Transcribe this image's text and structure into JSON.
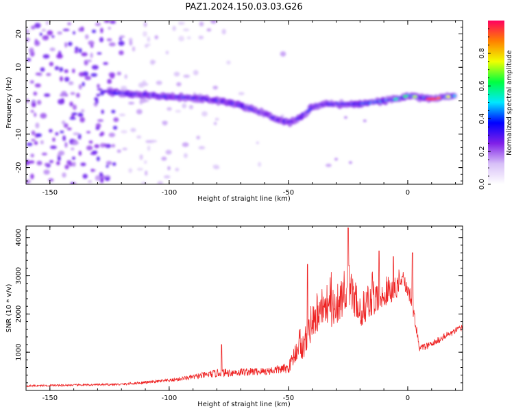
{
  "chart_data": [
    {
      "type": "heatmap",
      "title": "PAZ1.2024.150.03.03.G26",
      "xlabel": "Height of straight line (km)",
      "ylabel": "Frequency (Hz)",
      "xlim": [
        -160,
        23
      ],
      "ylim": [
        -25,
        24
      ],
      "x_ticks": [
        -150,
        -100,
        -50,
        0
      ],
      "y_ticks": [
        -20,
        -10,
        0,
        10,
        20
      ],
      "colorbar": {
        "label": "Normalized spectral amplitude",
        "range": [
          0.0,
          1.0
        ],
        "ticks": [
          0.0,
          0.2,
          0.4,
          0.6,
          0.8
        ],
        "tick_labels": [
          "0.0",
          "0.2",
          "0.4",
          "0.6",
          "0.8"
        ],
        "colors": [
          "#ffffff",
          "#d8c0f8",
          "#8020e8",
          "#0000ff",
          "#00e8ff",
          "#00ff40",
          "#f0ff00",
          "#ff8000",
          "#ff0060"
        ]
      },
      "ridge_frequency": {
        "x": [
          -125,
          -115,
          -105,
          -95,
          -85,
          -75,
          -65,
          -55,
          -50,
          -45,
          -40,
          -35,
          -30,
          -25,
          -20,
          -15,
          -10,
          -5,
          0,
          5,
          10,
          15,
          20
        ],
        "y": [
          2.5,
          2.0,
          1.5,
          1.0,
          0.5,
          -0.5,
          -2.5,
          -5.5,
          -6.5,
          -5.0,
          -2.0,
          -1.0,
          -1.0,
          -1.0,
          -1.0,
          -0.5,
          0.0,
          0.5,
          1.5,
          1.0,
          0.5,
          1.0,
          1.5
        ]
      },
      "background_noise": "scattered low-amplitude patches for x < -80 km, strongest for x < -120 km"
    },
    {
      "type": "line",
      "title": "",
      "xlabel": "Height of straight line (km)",
      "ylabel": "SNR (10 * v/v)",
      "xlim": [
        -160,
        23
      ],
      "ylim": [
        0,
        4300
      ],
      "x_ticks": [
        -150,
        -100,
        -50,
        0
      ],
      "y_ticks": [
        1000,
        2000,
        3000,
        4000
      ],
      "series": [
        {
          "color": "#ee2222",
          "envelope_x": [
            -160,
            -140,
            -120,
            -100,
            -90,
            -80,
            -70,
            -60,
            -50,
            -45,
            -40,
            -35,
            -30,
            -25,
            -20,
            -15,
            -10,
            -5,
            -2,
            2,
            5,
            10,
            15,
            20,
            23
          ],
          "envelope_y": [
            120,
            140,
            160,
            260,
            350,
            450,
            480,
            500,
            580,
            1300,
            2400,
            2800,
            2700,
            3400,
            2600,
            2900,
            3000,
            3000,
            3200,
            2200,
            1100,
            1200,
            1400,
            1550,
            1650
          ],
          "noise_amplitude": [
            40,
            40,
            45,
            70,
            110,
            180,
            180,
            170,
            220,
            700,
            1200,
            1200,
            1200,
            1300,
            1100,
            1100,
            900,
            700,
            500,
            300,
            150,
            150,
            150,
            150,
            150
          ],
          "peaks": [
            {
              "x": -25,
              "y": 4250
            },
            {
              "x": -42,
              "y": 3300
            },
            {
              "x": -12,
              "y": 3650
            },
            {
              "x": -6,
              "y": 3500
            },
            {
              "x": 2,
              "y": 3600
            },
            {
              "x": -78,
              "y": 1200
            }
          ]
        }
      ]
    }
  ]
}
